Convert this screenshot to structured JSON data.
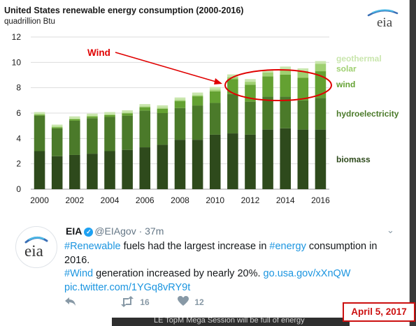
{
  "chart_data": {
    "type": "bar",
    "stacked": true,
    "title": "United States renewable energy consumption (2000-2016)",
    "subtitle": "quadrillion Btu",
    "categories": [
      "2000",
      "2001",
      "2002",
      "2003",
      "2004",
      "2005",
      "2006",
      "2007",
      "2008",
      "2009",
      "2010",
      "2011",
      "2012",
      "2013",
      "2014",
      "2015",
      "2016"
    ],
    "x_tick_labels": [
      "2000",
      "2002",
      "2004",
      "2006",
      "2008",
      "2010",
      "2012",
      "2014",
      "2016"
    ],
    "ylim": [
      0,
      12
    ],
    "y_ticks": [
      0,
      2,
      4,
      6,
      8,
      10,
      12
    ],
    "grid": true,
    "series": [
      {
        "name": "biomass",
        "color": "#2e4a1c",
        "values": [
          3.0,
          2.6,
          2.7,
          2.8,
          3.0,
          3.1,
          3.3,
          3.5,
          3.9,
          3.9,
          4.3,
          4.4,
          4.3,
          4.7,
          4.8,
          4.7,
          4.7
        ]
      },
      {
        "name": "hydroelectricity",
        "color": "#4b7a2a",
        "values": [
          2.8,
          2.2,
          2.7,
          2.8,
          2.7,
          2.7,
          2.9,
          2.5,
          2.5,
          2.7,
          2.5,
          3.1,
          2.6,
          2.6,
          2.5,
          2.3,
          2.5
        ]
      },
      {
        "name": "wind",
        "color": "#64a132",
        "values": [
          0.06,
          0.07,
          0.11,
          0.12,
          0.14,
          0.18,
          0.26,
          0.34,
          0.55,
          0.72,
          0.92,
          1.17,
          1.34,
          1.6,
          1.73,
          1.78,
          2.1
        ]
      },
      {
        "name": "solar",
        "color": "#9fd071",
        "values": [
          0.06,
          0.06,
          0.06,
          0.06,
          0.06,
          0.06,
          0.07,
          0.08,
          0.09,
          0.1,
          0.13,
          0.17,
          0.23,
          0.31,
          0.43,
          0.54,
          0.59
        ]
      },
      {
        "name": "geothermal",
        "color": "#c9e6ad",
        "values": [
          0.16,
          0.16,
          0.17,
          0.18,
          0.18,
          0.18,
          0.18,
          0.19,
          0.19,
          0.2,
          0.21,
          0.21,
          0.21,
          0.21,
          0.21,
          0.21,
          0.21
        ]
      }
    ],
    "legend_position": "right",
    "annotations": [
      {
        "text": "Wind",
        "color": "#e00000"
      }
    ],
    "logo": "eia"
  },
  "tweet": {
    "name": "EIA",
    "verified_mark": "✓",
    "handle": "@EIAgov",
    "time": "· 37m",
    "caret": "⌄",
    "text_segments": [
      {
        "t": "#Renewable",
        "link": true
      },
      {
        "t": " fuels had the largest increase in ",
        "link": false
      },
      {
        "t": "#energy",
        "link": true
      },
      {
        "t": " consumption in 2016.",
        "link": false
      },
      {
        "t": "\n",
        "link": false
      },
      {
        "t": "#Wind",
        "link": true
      },
      {
        "t": " generation increased by nearly 20%. ",
        "link": false
      },
      {
        "t": "go.usa.gov/xXnQW",
        "link": true
      },
      {
        "t": "\n",
        "link": false
      },
      {
        "t": "pic.twitter.com/1YGq8vRY9t",
        "link": true
      }
    ],
    "reply_icon": "reply-icon",
    "retweet_count": "16",
    "like_count": "12"
  },
  "date_stamp": "April 5, 2017",
  "background_text": "LE TopM Mega Session will be full of energy"
}
